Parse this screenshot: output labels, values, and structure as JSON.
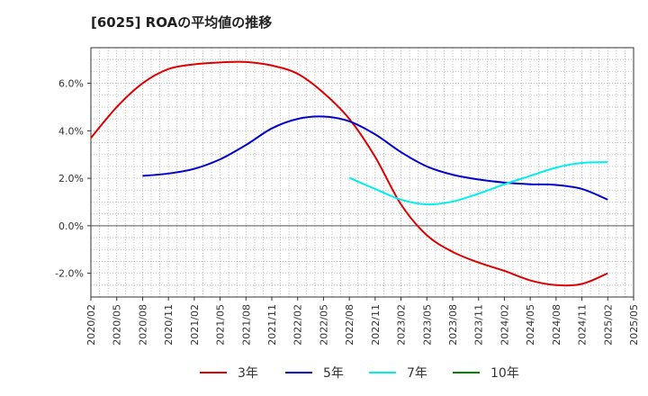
{
  "title": "[6025]  ROAの平均値の推移",
  "chart_data": {
    "type": "line",
    "title": "[6025]  ROAの平均値の推移",
    "xlabel": "",
    "ylabel": "",
    "ylim": [
      -3.0,
      7.5
    ],
    "y_ticks": [
      "6.0%",
      "4.0%",
      "2.0%",
      "0.0%",
      "-2.0%"
    ],
    "y_tick_values": [
      6,
      4,
      2,
      0,
      -2
    ],
    "x_ticks": [
      "2020/02",
      "2020/05",
      "2020/08",
      "2020/11",
      "2021/02",
      "2021/05",
      "2021/08",
      "2021/11",
      "2022/02",
      "2022/05",
      "2022/08",
      "2022/11",
      "2023/02",
      "2023/05",
      "2023/08",
      "2023/11",
      "2024/02",
      "2024/05",
      "2024/08",
      "2024/11",
      "2025/02",
      "2025/05"
    ],
    "x_range": [
      "2020/02",
      "2025/05"
    ],
    "grid": true,
    "legend_position": "bottom",
    "series": [
      {
        "name": "3年",
        "color": "#dd0000",
        "points": [
          [
            "2020/02",
            3.7
          ],
          [
            "2020/05",
            5.0
          ],
          [
            "2020/08",
            6.0
          ],
          [
            "2020/11",
            6.6
          ],
          [
            "2021/02",
            6.8
          ],
          [
            "2021/05",
            6.88
          ],
          [
            "2021/08",
            6.9
          ],
          [
            "2021/11",
            6.75
          ],
          [
            "2022/02",
            6.4
          ],
          [
            "2022/05",
            5.6
          ],
          [
            "2022/08",
            4.5
          ],
          [
            "2022/11",
            2.9
          ],
          [
            "2023/02",
            0.9
          ],
          [
            "2023/05",
            -0.4
          ],
          [
            "2023/08",
            -1.1
          ],
          [
            "2023/11",
            -1.55
          ],
          [
            "2024/02",
            -1.9
          ],
          [
            "2024/05",
            -2.3
          ],
          [
            "2024/08",
            -2.5
          ],
          [
            "2024/11",
            -2.45
          ],
          [
            "2025/02",
            -2.0
          ]
        ]
      },
      {
        "name": "5年",
        "color": "#0000cc",
        "points": [
          [
            "2020/08",
            2.1
          ],
          [
            "2020/11",
            2.2
          ],
          [
            "2021/02",
            2.4
          ],
          [
            "2021/05",
            2.8
          ],
          [
            "2021/08",
            3.4
          ],
          [
            "2021/11",
            4.1
          ],
          [
            "2022/02",
            4.5
          ],
          [
            "2022/05",
            4.6
          ],
          [
            "2022/08",
            4.4
          ],
          [
            "2022/11",
            3.85
          ],
          [
            "2023/02",
            3.1
          ],
          [
            "2023/05",
            2.5
          ],
          [
            "2023/08",
            2.15
          ],
          [
            "2023/11",
            1.95
          ],
          [
            "2024/02",
            1.82
          ],
          [
            "2024/05",
            1.75
          ],
          [
            "2024/08",
            1.72
          ],
          [
            "2024/11",
            1.55
          ],
          [
            "2025/02",
            1.1
          ]
        ]
      },
      {
        "name": "7年",
        "color": "#00eeee",
        "points": [
          [
            "2022/08",
            2.02
          ],
          [
            "2022/11",
            1.55
          ],
          [
            "2023/02",
            1.1
          ],
          [
            "2023/05",
            0.9
          ],
          [
            "2023/08",
            1.02
          ],
          [
            "2023/11",
            1.35
          ],
          [
            "2024/02",
            1.75
          ],
          [
            "2024/05",
            2.1
          ],
          [
            "2024/08",
            2.45
          ],
          [
            "2024/11",
            2.65
          ],
          [
            "2025/02",
            2.68
          ]
        ]
      },
      {
        "name": "10年",
        "color": "#008800",
        "points": []
      }
    ]
  }
}
